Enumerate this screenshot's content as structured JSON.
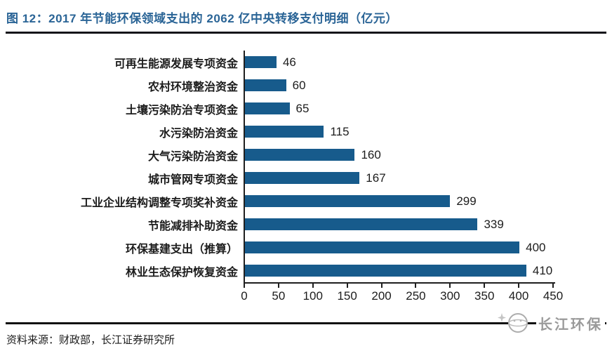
{
  "header": {
    "title": "图 12：2017 年节能环保领域支出的 2062 亿中央转移支付明细（亿元）"
  },
  "chart_data": {
    "type": "bar",
    "orientation": "horizontal",
    "title": "2017 年节能环保领域支出的 2062 亿中央转移支付明细（亿元）",
    "unit": "亿元",
    "categories": [
      "可再生能源发展专项资金",
      "农村环境整治资金",
      "土壤污染防治专项资金",
      "水污染防治资金",
      "大气污染防治资金",
      "城市管网专项资金",
      "工业企业结构调整专项奖补资金",
      "节能减排补助资金",
      "环保基建支出（推算）",
      "林业生态保护恢复资金"
    ],
    "values": [
      46,
      60,
      65,
      115,
      160,
      167,
      299,
      339,
      400,
      410
    ],
    "x_ticks": [
      0,
      50,
      100,
      150,
      200,
      250,
      300,
      350,
      400,
      450
    ],
    "xlim": [
      0,
      450
    ],
    "value_labels": true,
    "grid": false,
    "legend": false,
    "bar_color": "#175B8C",
    "title_color": "#2A6496",
    "axis_color": "#1f1f1f"
  },
  "footer": {
    "source": "资料来源：财政部，长江证券研究所",
    "brand": "长江环保"
  }
}
